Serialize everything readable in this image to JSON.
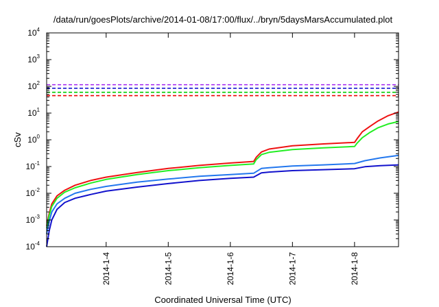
{
  "chart_data": {
    "type": "line",
    "title": "/data/run/goesPlots/archive/2014-01-08/17:00/flux/../bryn/5daysMarsAccumulated.plot",
    "xlabel": "Coordinated Universal Time (UTC)",
    "ylabel": "cSv",
    "y_scale": "log",
    "ylim": [
      0.0001,
      10000
    ],
    "xlim": [
      "2014-01-03T01:00",
      "2014-01-08T17:00"
    ],
    "x_ticks": [
      "2014-1-4",
      "2014-1-5",
      "2014-1-6",
      "2014-1-7",
      "2014-1-8"
    ],
    "y_ticks": [
      {
        "base": "10",
        "exp": "-4",
        "value": 0.0001
      },
      {
        "base": "10",
        "exp": "-3",
        "value": 0.001
      },
      {
        "base": "10",
        "exp": "-2",
        "value": 0.01
      },
      {
        "base": "10",
        "exp": "-1",
        "value": 0.1
      },
      {
        "base": "10",
        "exp": "0",
        "value": 1
      },
      {
        "base": "10",
        "exp": "1",
        "value": 10
      },
      {
        "base": "10",
        "exp": "2",
        "value": 100
      },
      {
        "base": "10",
        "exp": "3",
        "value": 1000
      },
      {
        "base": "10",
        "exp": "4",
        "value": 10000
      }
    ],
    "grid": false,
    "legend": "none",
    "reference_lines": [
      {
        "value": 115,
        "color": "#a020f0",
        "style": "dashed"
      },
      {
        "value": 85,
        "color": "#0000cc",
        "style": "dashed"
      },
      {
        "value": 60,
        "color": "#00cc00",
        "style": "dashed"
      },
      {
        "value": 45,
        "color": "#ee0000",
        "style": "dashed"
      }
    ],
    "series": [
      {
        "color": "#ee1111",
        "points": [
          [
            "2014-01-03T01:00",
            0.0006
          ],
          [
            "2014-01-03T02:00",
            0.0018
          ],
          [
            "2014-01-03T03:00",
            0.004
          ],
          [
            "2014-01-03T05:00",
            0.008
          ],
          [
            "2014-01-03T08:00",
            0.013
          ],
          [
            "2014-01-03T12:00",
            0.02
          ],
          [
            "2014-01-03T18:00",
            0.03
          ],
          [
            "2014-01-04T00:00",
            0.04
          ],
          [
            "2014-01-04T12:00",
            0.06
          ],
          [
            "2014-01-05T00:00",
            0.085
          ],
          [
            "2014-01-05T12:00",
            0.11
          ],
          [
            "2014-01-06T00:00",
            0.135
          ],
          [
            "2014-01-06T09:00",
            0.155
          ],
          [
            "2014-01-06T10:00",
            0.22
          ],
          [
            "2014-01-06T12:00",
            0.35
          ],
          [
            "2014-01-06T15:00",
            0.45
          ],
          [
            "2014-01-07T00:00",
            0.6
          ],
          [
            "2014-01-07T12:00",
            0.7
          ],
          [
            "2014-01-08T00:00",
            0.8
          ],
          [
            "2014-01-08T01:00",
            1.1
          ],
          [
            "2014-01-08T03:00",
            2.0
          ],
          [
            "2014-01-08T06:00",
            3.2
          ],
          [
            "2014-01-08T09:00",
            5.0
          ],
          [
            "2014-01-08T13:00",
            8.0
          ],
          [
            "2014-01-08T17:00",
            11.0
          ]
        ]
      },
      {
        "color": "#22ee22",
        "points": [
          [
            "2014-01-03T01:00",
            0.0005
          ],
          [
            "2014-01-03T02:00",
            0.0015
          ],
          [
            "2014-01-03T03:00",
            0.0032
          ],
          [
            "2014-01-03T05:00",
            0.0065
          ],
          [
            "2014-01-03T08:00",
            0.011
          ],
          [
            "2014-01-03T12:00",
            0.016
          ],
          [
            "2014-01-03T18:00",
            0.024
          ],
          [
            "2014-01-04T00:00",
            0.033
          ],
          [
            "2014-01-04T12:00",
            0.05
          ],
          [
            "2014-01-05T00:00",
            0.07
          ],
          [
            "2014-01-05T12:00",
            0.09
          ],
          [
            "2014-01-06T00:00",
            0.11
          ],
          [
            "2014-01-06T09:00",
            0.125
          ],
          [
            "2014-01-06T10:00",
            0.18
          ],
          [
            "2014-01-06T12:00",
            0.28
          ],
          [
            "2014-01-06T15:00",
            0.34
          ],
          [
            "2014-01-07T00:00",
            0.43
          ],
          [
            "2014-01-07T12:00",
            0.5
          ],
          [
            "2014-01-08T00:00",
            0.56
          ],
          [
            "2014-01-08T01:00",
            0.75
          ],
          [
            "2014-01-08T03:00",
            1.2
          ],
          [
            "2014-01-08T06:00",
            1.9
          ],
          [
            "2014-01-08T09:00",
            2.8
          ],
          [
            "2014-01-08T13:00",
            3.9
          ],
          [
            "2014-01-08T17:00",
            4.8
          ]
        ]
      },
      {
        "color": "#2277ee",
        "points": [
          [
            "2014-01-03T01:00",
            0.0003
          ],
          [
            "2014-01-03T02:00",
            0.0009
          ],
          [
            "2014-01-03T03:00",
            0.002
          ],
          [
            "2014-01-03T05:00",
            0.004
          ],
          [
            "2014-01-03T08:00",
            0.0065
          ],
          [
            "2014-01-03T12:00",
            0.01
          ],
          [
            "2014-01-03T18:00",
            0.014
          ],
          [
            "2014-01-04T00:00",
            0.018
          ],
          [
            "2014-01-04T12:00",
            0.026
          ],
          [
            "2014-01-05T00:00",
            0.034
          ],
          [
            "2014-01-05T12:00",
            0.043
          ],
          [
            "2014-01-06T00:00",
            0.05
          ],
          [
            "2014-01-06T09:00",
            0.056
          ],
          [
            "2014-01-06T12:00",
            0.085
          ],
          [
            "2014-01-06T15:00",
            0.09
          ],
          [
            "2014-01-07T00:00",
            0.105
          ],
          [
            "2014-01-07T12:00",
            0.115
          ],
          [
            "2014-01-08T00:00",
            0.13
          ],
          [
            "2014-01-08T04:00",
            0.165
          ],
          [
            "2014-01-08T10:00",
            0.21
          ],
          [
            "2014-01-08T17:00",
            0.26
          ]
        ]
      },
      {
        "color": "#1111cc",
        "points": [
          [
            "2014-01-03T01:00",
            0.0001
          ],
          [
            "2014-01-03T02:00",
            0.0004
          ],
          [
            "2014-01-03T03:00",
            0.001
          ],
          [
            "2014-01-03T05:00",
            0.0025
          ],
          [
            "2014-01-03T08:00",
            0.0045
          ],
          [
            "2014-01-03T12:00",
            0.0065
          ],
          [
            "2014-01-03T18:00",
            0.009
          ],
          [
            "2014-01-04T00:00",
            0.012
          ],
          [
            "2014-01-04T12:00",
            0.017
          ],
          [
            "2014-01-05T00:00",
            0.023
          ],
          [
            "2014-01-05T12:00",
            0.03
          ],
          [
            "2014-01-06T00:00",
            0.036
          ],
          [
            "2014-01-06T09:00",
            0.04
          ],
          [
            "2014-01-06T12:00",
            0.058
          ],
          [
            "2014-01-06T15:00",
            0.062
          ],
          [
            "2014-01-07T00:00",
            0.07
          ],
          [
            "2014-01-07T12:00",
            0.076
          ],
          [
            "2014-01-08T00:00",
            0.083
          ],
          [
            "2014-01-08T04:00",
            0.098
          ],
          [
            "2014-01-08T10:00",
            0.108
          ],
          [
            "2014-01-08T17:00",
            0.115
          ]
        ]
      }
    ]
  }
}
